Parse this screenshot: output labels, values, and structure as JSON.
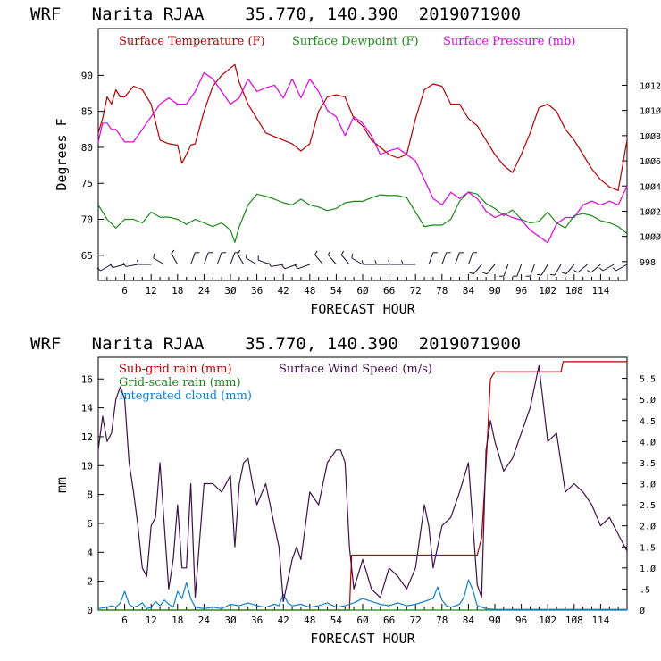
{
  "chart_data": [
    {
      "type": "line",
      "title": "WRF   Narita RJAA    35.770, 140.390  2019071900",
      "xlabel": "FORECAST HOUR",
      "ylabel": "Degrees F",
      "xlim": [
        0,
        120
      ],
      "ylim": [
        61.5,
        96.5
      ],
      "y2lim": [
        996.5,
        1016.5
      ],
      "x_ticks": [
        6,
        12,
        18,
        24,
        30,
        36,
        42,
        48,
        54,
        60,
        66,
        72,
        78,
        84,
        90,
        96,
        102,
        108,
        114
      ],
      "x_tick_labels": [
        "6",
        "12",
        "18",
        "24",
        "3Ø",
        "36",
        "42",
        "48",
        "54",
        "6Ø",
        "66",
        "72",
        "78",
        "84",
        "9Ø",
        "96",
        "1Ø2",
        "1Ø8",
        "114"
      ],
      "y_ticks": [
        65,
        70,
        75,
        80,
        85,
        90
      ],
      "y2_ticks": [
        998,
        1000,
        1002,
        1004,
        1006,
        1008,
        1010,
        1012
      ],
      "y2_tick_labels": [
        "998",
        "1ØØØ",
        "1ØØ2",
        "1ØØ4",
        "1ØØ6",
        "1ØØ8",
        "1Ø1Ø",
        "1Ø12"
      ],
      "series": [
        {
          "name": "Surface Temperature (F)",
          "color": "#b40000",
          "axis": "left",
          "x": [
            0,
            1,
            2,
            3,
            4,
            5,
            6,
            8,
            10,
            12,
            14,
            16,
            18,
            19,
            20,
            21,
            22,
            24,
            26,
            28,
            30,
            31,
            32,
            34,
            36,
            38,
            40,
            42,
            44,
            46,
            48,
            50,
            52,
            54,
            56,
            58,
            60,
            62,
            64,
            66,
            68,
            70,
            72,
            74,
            76,
            78,
            80,
            82,
            84,
            86,
            88,
            90,
            92,
            94,
            96,
            98,
            100,
            102,
            104,
            106,
            108,
            110,
            112,
            114,
            116,
            118,
            120
          ],
          "values": [
            82,
            84,
            87,
            86,
            88,
            87,
            87,
            88.5,
            88,
            86,
            81,
            80.5,
            80.3,
            77.8,
            79,
            80.3,
            80.5,
            85,
            88.5,
            90,
            91,
            91.5,
            89,
            86,
            84,
            82,
            81.5,
            81,
            80.5,
            79.5,
            80.5,
            85,
            87,
            87.3,
            87,
            84,
            83,
            81,
            80,
            79,
            78.5,
            79,
            84,
            88,
            88.8,
            88.5,
            86,
            86,
            84,
            83,
            81,
            79,
            77.5,
            76.5,
            79,
            82,
            85.5,
            86,
            85,
            82.5,
            81,
            79,
            77,
            75.5,
            74.5,
            74,
            81
          ]
        },
        {
          "name": "Surface Dewpoint (F)",
          "color": "#188a18",
          "axis": "left",
          "x": [
            0,
            2,
            4,
            6,
            8,
            10,
            12,
            14,
            16,
            18,
            20,
            22,
            24,
            26,
            28,
            30,
            31,
            32,
            34,
            36,
            38,
            40,
            42,
            44,
            46,
            48,
            50,
            52,
            54,
            56,
            58,
            60,
            62,
            64,
            66,
            68,
            70,
            72,
            74,
            76,
            78,
            80,
            82,
            84,
            86,
            88,
            90,
            92,
            94,
            96,
            98,
            100,
            102,
            104,
            106,
            108,
            110,
            112,
            114,
            116,
            118,
            120
          ],
          "values": [
            72,
            70,
            68.8,
            70,
            70,
            69.5,
            71,
            70.3,
            70.3,
            70,
            69.3,
            70,
            69.5,
            69,
            69.5,
            68.5,
            66.8,
            69,
            72,
            73.5,
            73.2,
            72.8,
            72.3,
            72,
            72.8,
            72,
            71.7,
            71.2,
            71.5,
            72.3,
            72.5,
            72.5,
            73,
            73.4,
            73.3,
            73.3,
            73,
            71,
            69,
            69.2,
            69.2,
            70,
            72.5,
            73.8,
            73.5,
            72.2,
            71.5,
            70.5,
            71.3,
            70,
            69.5,
            69.7,
            71,
            69.5,
            68.8,
            70.5,
            70.8,
            70.5,
            69.8,
            69.5,
            69,
            68
          ]
        },
        {
          "name": "Surface Pressure (mb)",
          "color": "#e000e0",
          "axis": "right",
          "x": [
            0,
            1,
            2,
            3,
            4,
            6,
            8,
            10,
            12,
            14,
            16,
            18,
            20,
            22,
            24,
            26,
            28,
            30,
            32,
            34,
            36,
            38,
            40,
            42,
            44,
            46,
            48,
            50,
            52,
            54,
            56,
            58,
            60,
            62,
            64,
            66,
            68,
            70,
            72,
            74,
            76,
            78,
            80,
            82,
            84,
            86,
            88,
            90,
            92,
            94,
            96,
            98,
            100,
            102,
            104,
            106,
            108,
            110,
            112,
            114,
            116,
            118,
            120
          ],
          "values": [
            1007.5,
            1009,
            1009,
            1008.5,
            1008.5,
            1007.5,
            1007.5,
            1008.5,
            1009.5,
            1010.5,
            1011,
            1010.5,
            1010.5,
            1011.5,
            1013,
            1012.5,
            1011.5,
            1010.5,
            1011,
            1012.5,
            1011.5,
            1011.8,
            1012,
            1011,
            1012.5,
            1011,
            1012.5,
            1011.5,
            1010,
            1009.5,
            1008,
            1009.5,
            1009,
            1008,
            1006.5,
            1006.8,
            1007,
            1006.5,
            1006,
            1004.5,
            1003,
            1002.5,
            1003.5,
            1003,
            1003.5,
            1003,
            1002,
            1001.5,
            1001.8,
            1001.5,
            1001.3,
            1000.5,
            1000,
            999.5,
            1001,
            1001.5,
            1001.5,
            1002.5,
            1002.8,
            1002.5,
            1002.8,
            1002.5,
            1004
          ]
        }
      ],
      "wind_barbs": {
        "x": [
          1,
          3,
          6,
          9,
          12,
          15,
          18,
          21,
          24,
          27,
          30,
          33,
          36,
          39,
          42,
          45,
          48,
          51,
          54,
          57,
          60,
          63,
          66,
          69,
          72,
          75,
          78,
          81,
          84,
          87,
          90,
          93,
          96,
          99,
          102,
          105,
          108,
          111,
          114,
          117,
          120
        ],
        "direction_deg": [
          230,
          240,
          255,
          260,
          270,
          300,
          330,
          20,
          20,
          20,
          20,
          330,
          300,
          290,
          260,
          250,
          250,
          320,
          320,
          320,
          300,
          270,
          270,
          270,
          270,
          20,
          20,
          20,
          20,
          220,
          220,
          200,
          200,
          200,
          210,
          210,
          220,
          230,
          230,
          240,
          240
        ]
      }
    },
    {
      "type": "line",
      "title": "WRF   Narita RJAA    35.770, 140.390  2019071900",
      "xlabel": "FORECAST HOUR",
      "ylabel": "mm",
      "xlim": [
        0,
        120
      ],
      "ylim": [
        0,
        17.5
      ],
      "y2lim": [
        0,
        6.0
      ],
      "x_ticks": [
        6,
        12,
        18,
        24,
        30,
        36,
        42,
        48,
        54,
        60,
        66,
        72,
        78,
        84,
        90,
        96,
        102,
        108,
        114
      ],
      "x_tick_labels": [
        "6",
        "12",
        "18",
        "24",
        "3Ø",
        "36",
        "42",
        "48",
        "54",
        "6Ø",
        "66",
        "72",
        "78",
        "84",
        "9Ø",
        "96",
        "1Ø2",
        "1Ø8",
        "114"
      ],
      "y_ticks": [
        0,
        2,
        4,
        6,
        8,
        10,
        12,
        14,
        16
      ],
      "y2_ticks": [
        0,
        0.5,
        1.0,
        1.5,
        2.0,
        2.5,
        3.0,
        3.5,
        4.0,
        4.5,
        5.0,
        5.5
      ],
      "y2_tick_labels": [
        "Ø",
        ".5",
        "1.Ø",
        "1.5",
        "2.Ø",
        "2.5",
        "3.Ø",
        "3.5",
        "4.Ø",
        "4.5",
        "5.Ø",
        "5.5"
      ],
      "series": [
        {
          "name": "Sub-grid rain (mm)",
          "color": "#b40000",
          "axis": "left",
          "x": [
            0,
            57,
            57.5,
            60,
            85,
            86,
            87,
            88,
            89,
            90,
            105,
            105.5,
            120
          ],
          "values": [
            0,
            0,
            3.8,
            3.8,
            3.8,
            3.8,
            5,
            10,
            16,
            16.5,
            16.5,
            17.2,
            17.2
          ]
        },
        {
          "name": "Grid-scale rain (mm)",
          "color": "#188a18",
          "axis": "left",
          "x": [
            0,
            120
          ],
          "values": [
            0,
            0
          ]
        },
        {
          "name": "Integrated cloud (mm)",
          "color": "#1080d0",
          "axis": "left",
          "x": [
            0,
            2,
            3,
            4,
            5,
            6,
            7,
            8,
            9,
            10,
            11,
            12,
            13,
            14,
            15,
            16,
            17,
            18,
            19,
            20,
            21,
            22,
            24,
            26,
            28,
            30,
            32,
            34,
            36,
            38,
            40,
            41,
            42,
            43,
            44,
            46,
            48,
            50,
            52,
            54,
            56,
            58,
            60,
            62,
            64,
            66,
            68,
            70,
            72,
            74,
            76,
            77,
            78,
            79,
            80,
            82,
            83,
            84,
            85,
            86,
            88,
            90,
            100,
            110,
            120
          ],
          "values": [
            0.1,
            0.2,
            0.3,
            0.2,
            0.5,
            1.3,
            0.4,
            0.2,
            0.3,
            0.5,
            0.1,
            0.2,
            0.6,
            0.3,
            0.7,
            0.4,
            0.2,
            1.3,
            0.8,
            1.9,
            0.8,
            0.2,
            0.1,
            0.2,
            0.1,
            0.4,
            0.3,
            0.5,
            0.3,
            0.2,
            0.4,
            0.3,
            1.1,
            0.5,
            0.3,
            0.4,
            0.2,
            0.3,
            0.5,
            0.2,
            0.3,
            0.5,
            0.8,
            0.6,
            0.4,
            0.3,
            0.5,
            0.3,
            0.4,
            0.6,
            0.8,
            1.6,
            0.7,
            0.3,
            0.2,
            0.4,
            0.9,
            2.1,
            1.4,
            0.3,
            0.1,
            0.05,
            0.05,
            0.05,
            0.05
          ]
        },
        {
          "name": "Surface Wind Speed (m/s)",
          "color": "#40104a",
          "axis": "right",
          "x": [
            0,
            1,
            2,
            3,
            4,
            5,
            6,
            7,
            8,
            9,
            10,
            11,
            12,
            13,
            14,
            15,
            16,
            17,
            18,
            19,
            20,
            21,
            22,
            24,
            26,
            28,
            30,
            31,
            32,
            33,
            34,
            35,
            36,
            38,
            40,
            41,
            42,
            43,
            44,
            45,
            46,
            48,
            50,
            52,
            54,
            55,
            56,
            57,
            58,
            60,
            62,
            64,
            66,
            68,
            70,
            72,
            74,
            75,
            76,
            78,
            80,
            82,
            84,
            86,
            87,
            88,
            89,
            90,
            92,
            94,
            96,
            98,
            100,
            102,
            104,
            106,
            108,
            110,
            112,
            114,
            116,
            118,
            120
          ],
          "values": [
            3.8,
            4.6,
            4.0,
            4.2,
            5.0,
            5.3,
            5.0,
            3.5,
            2.8,
            2.0,
            1.0,
            0.8,
            2.0,
            2.2,
            3.5,
            2.0,
            0.5,
            1.2,
            2.5,
            1.0,
            1.0,
            3.0,
            0.3,
            3.0,
            3.0,
            2.8,
            3.2,
            1.5,
            3.0,
            3.5,
            3.6,
            3.0,
            2.5,
            3.0,
            2.0,
            1.5,
            0.2,
            0.7,
            1.2,
            1.5,
            1.2,
            2.8,
            2.5,
            3.5,
            3.8,
            3.8,
            3.5,
            1.5,
            0.5,
            1.2,
            0.5,
            0.3,
            1.0,
            0.8,
            0.5,
            1.0,
            2.5,
            2.0,
            1.0,
            2.0,
            2.2,
            2.8,
            3.5,
            0.6,
            0.3,
            3.8,
            4.5,
            4.0,
            3.3,
            3.6,
            4.2,
            4.8,
            5.8,
            4.0,
            4.2,
            2.8,
            3.0,
            2.8,
            2.5,
            2.0,
            2.2,
            1.8,
            1.4
          ]
        }
      ]
    }
  ]
}
